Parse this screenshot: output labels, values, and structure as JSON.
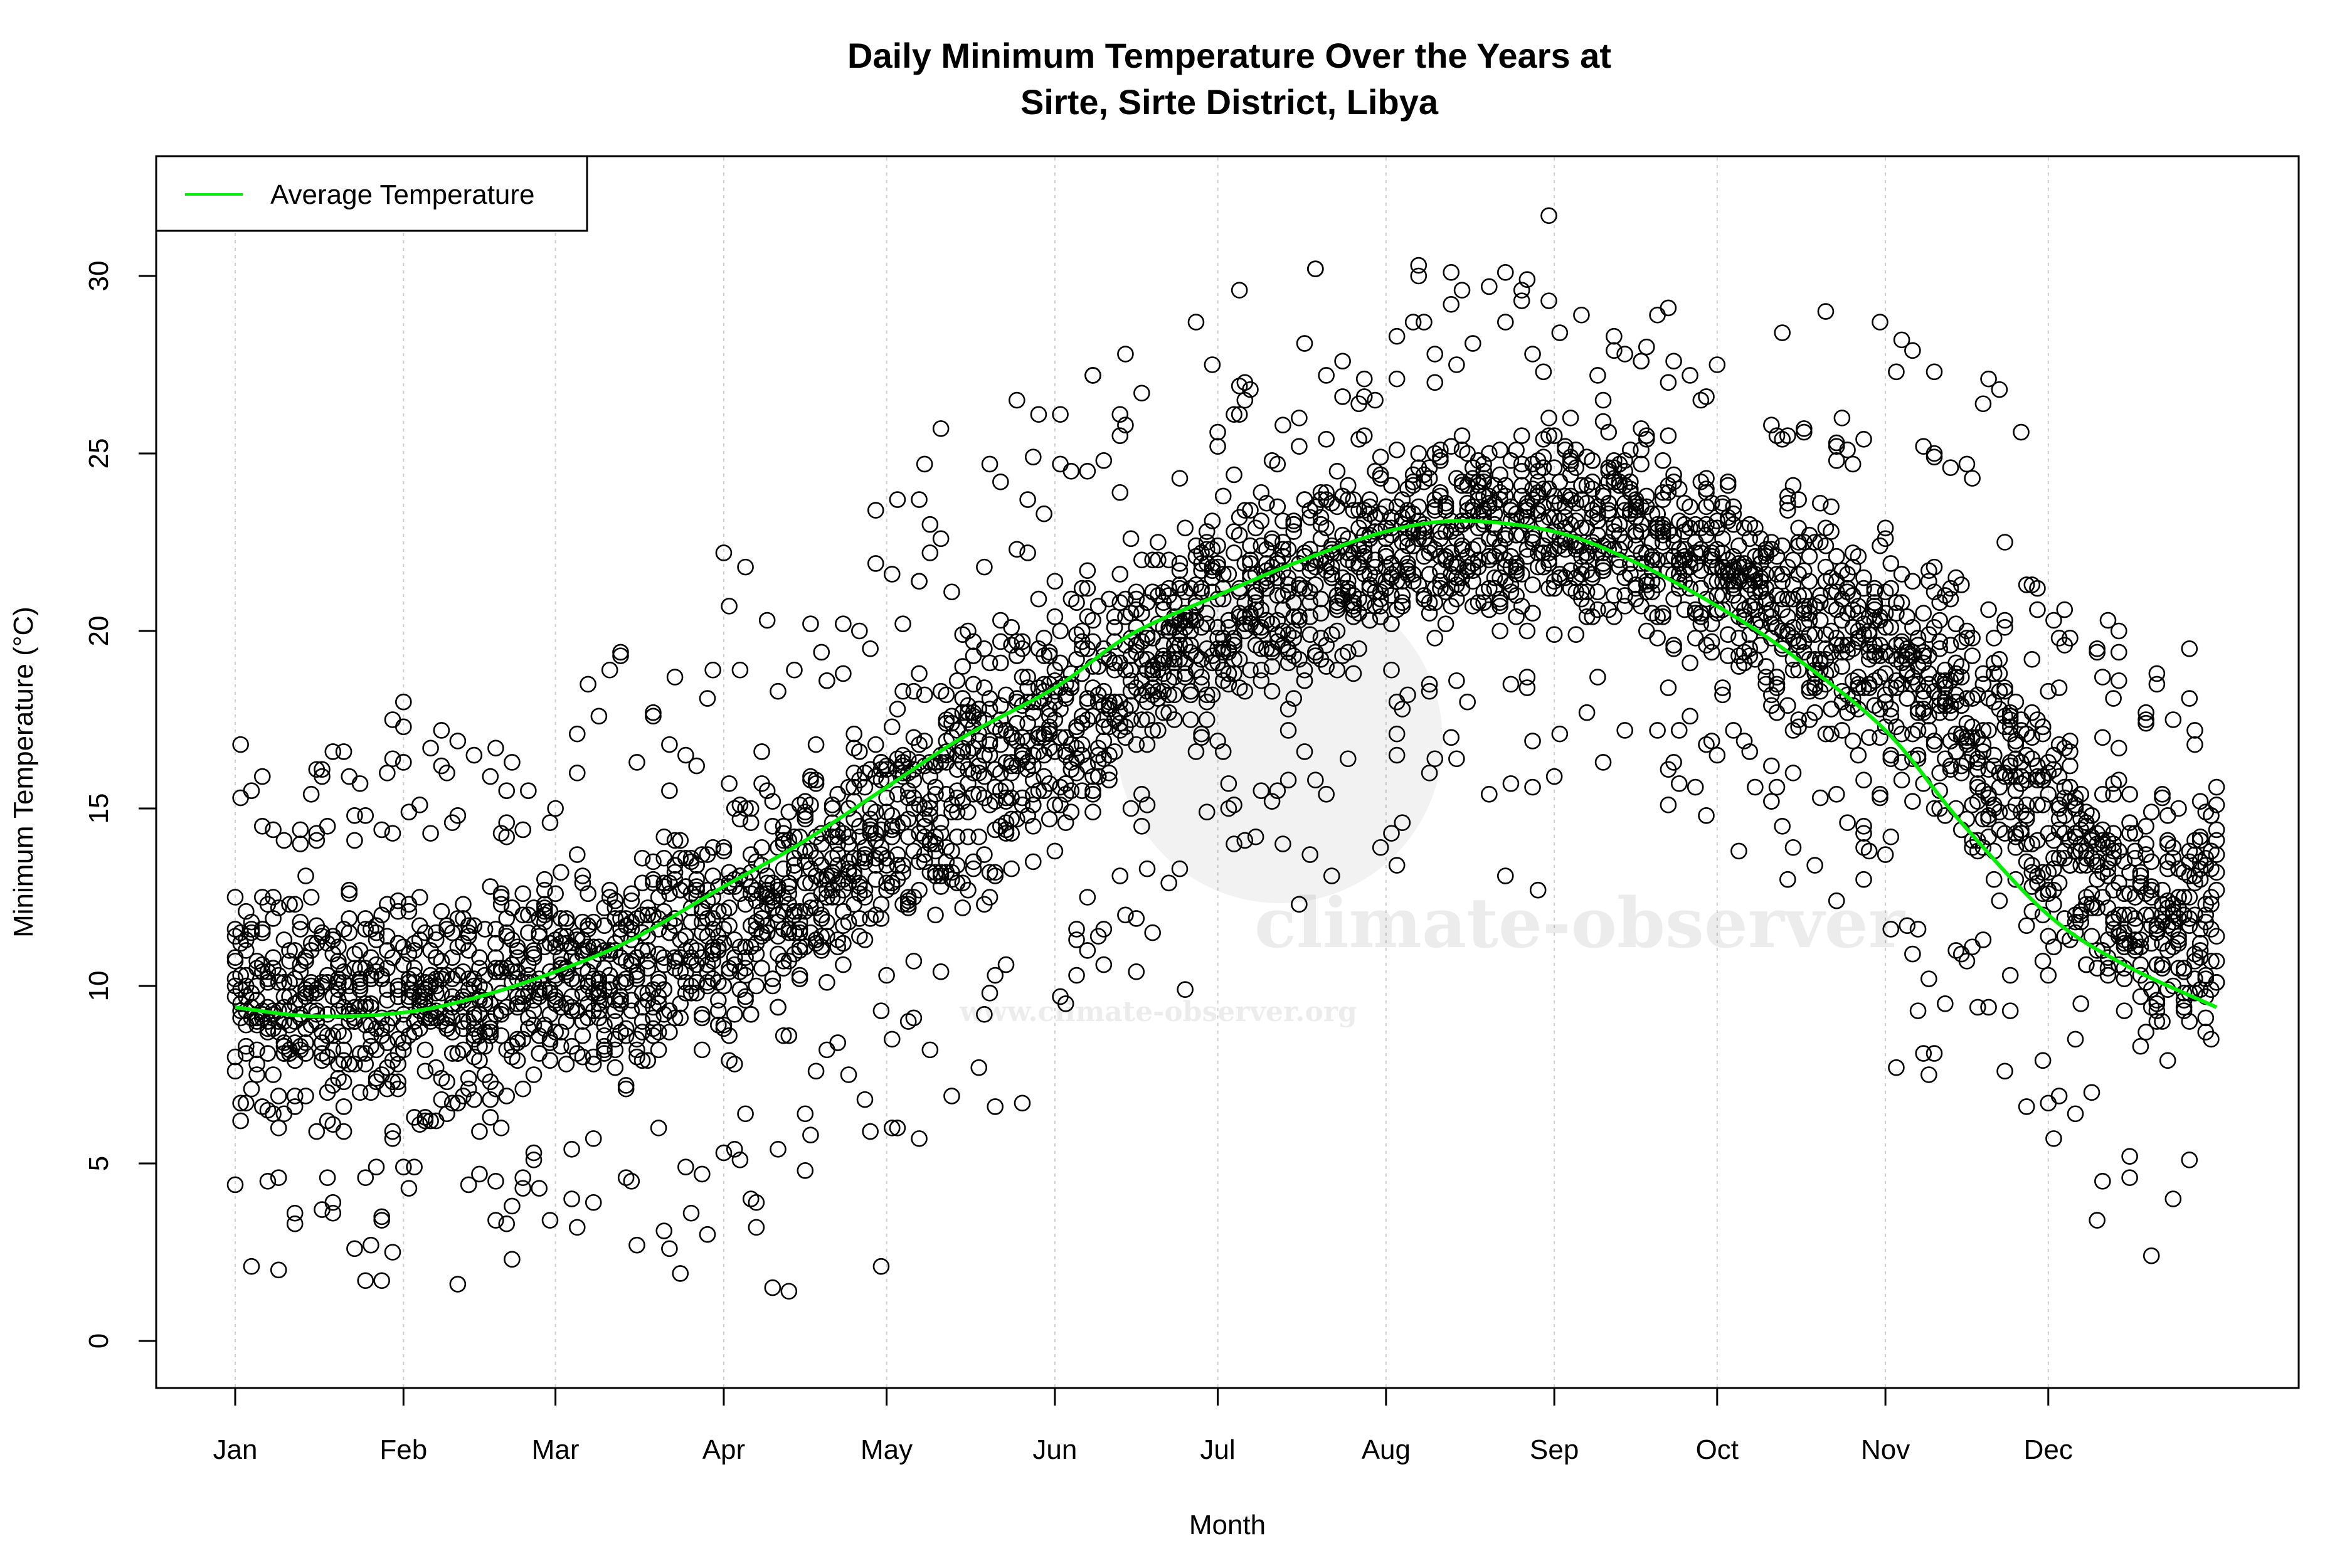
{
  "chart_data": {
    "type": "scatter",
    "title_line1": "Daily Minimum Temperature Over the Years at",
    "title_line2": "Sirte, Sirte District, Libya",
    "xlabel": "Month",
    "ylabel": "Minimum Temperature (°C)",
    "x_tick_labels": [
      "Jan",
      "Feb",
      "Mar",
      "Apr",
      "May",
      "Jun",
      "Jul",
      "Aug",
      "Sep",
      "Oct",
      "Nov",
      "Dec"
    ],
    "x_tick_days": [
      1,
      32,
      60,
      91,
      121,
      152,
      182,
      213,
      244,
      274,
      305,
      335
    ],
    "xlim_days": [
      1,
      366
    ],
    "y_ticks": [
      0,
      5,
      10,
      15,
      20,
      25,
      30
    ],
    "ylim": [
      -1.5,
      33.5
    ],
    "grid": "vertical dotted at month ticks",
    "legend": {
      "position": "top-left",
      "entries": [
        {
          "label": "Average Temperature",
          "color": "#00ee00"
        }
      ]
    },
    "average_series": {
      "name": "Average Temperature",
      "color": "#00ee00",
      "points": [
        [
          1,
          9.4
        ],
        [
          15,
          9.15
        ],
        [
          32,
          9.25
        ],
        [
          46,
          9.7
        ],
        [
          60,
          10.4
        ],
        [
          74,
          11.3
        ],
        [
          91,
          12.8
        ],
        [
          105,
          14.0
        ],
        [
          121,
          15.6
        ],
        [
          135,
          17.0
        ],
        [
          152,
          18.4
        ],
        [
          166,
          19.9
        ],
        [
          182,
          21.0
        ],
        [
          196,
          21.9
        ],
        [
          213,
          22.8
        ],
        [
          227,
          23.1
        ],
        [
          244,
          22.8
        ],
        [
          258,
          22.0
        ],
        [
          274,
          20.7
        ],
        [
          288,
          19.3
        ],
        [
          305,
          17.2
        ],
        [
          319,
          14.6
        ],
        [
          335,
          12.0
        ],
        [
          349,
          10.6
        ],
        [
          366,
          9.4
        ]
      ]
    },
    "scatter_series": {
      "marker": "open circle",
      "color": "#000000",
      "monthly_core_range": [
        [
          5,
          14
        ],
        [
          5,
          14
        ],
        [
          6,
          15
        ],
        [
          8,
          18
        ],
        [
          11,
          21
        ],
        [
          14,
          24
        ],
        [
          17,
          26
        ],
        [
          19,
          27
        ],
        [
          19,
          27
        ],
        [
          16,
          25
        ],
        [
          12,
          23
        ],
        [
          7,
          17
        ]
      ],
      "monthly_extremes": [
        [
          0.6,
          18
        ],
        [
          0.8,
          19.5
        ],
        [
          0.4,
          20.7
        ],
        [
          -0.1,
          25
        ],
        [
          4,
          27.5
        ],
        [
          8.5,
          30.6
        ],
        [
          10,
          31
        ],
        [
          12.5,
          32.1
        ],
        [
          13,
          29.5
        ],
        [
          11.8,
          31.2
        ],
        [
          6.3,
          28.5
        ],
        [
          1,
          21
        ]
      ]
    }
  },
  "watermark": {
    "brand": "climate-observer",
    "url": "www.climate-observer.org"
  }
}
